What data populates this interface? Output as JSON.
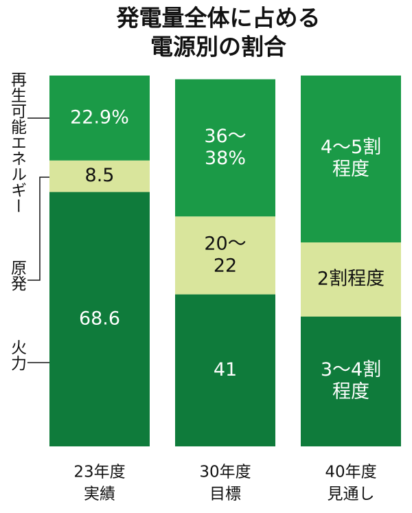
{
  "chart_data": {
    "type": "stacked-bar",
    "title": [
      "発電量全体に占める",
      "電源別の割合"
    ],
    "categories": [
      [
        "23年度",
        "実績"
      ],
      [
        "30年度",
        "目標"
      ],
      [
        "40年度",
        "見通し"
      ]
    ],
    "ylim": [
      0,
      100
    ],
    "series": [
      {
        "name": "再生可能エネルギー",
        "color": "#1b9a47",
        "label_color": "#ffffff",
        "values": [
          22.9,
          37,
          45
        ],
        "value_labels": [
          [
            "22.9%"
          ],
          [
            "36～",
            "38%"
          ],
          [
            "4～5割",
            "程度"
          ]
        ]
      },
      {
        "name": "原発",
        "color": "#d9e59c",
        "label_color": "#111111",
        "values": [
          8.5,
          21,
          20
        ],
        "value_labels": [
          [
            "8.5"
          ],
          [
            "20～",
            "22"
          ],
          [
            "2割程度"
          ]
        ]
      },
      {
        "name": "火力",
        "color": "#0f7b3b",
        "label_color": "#ffffff",
        "values": [
          68.6,
          41,
          35
        ],
        "value_labels": [
          [
            "68.6"
          ],
          [
            "41"
          ],
          [
            "3～4割",
            "程度"
          ]
        ]
      }
    ]
  }
}
